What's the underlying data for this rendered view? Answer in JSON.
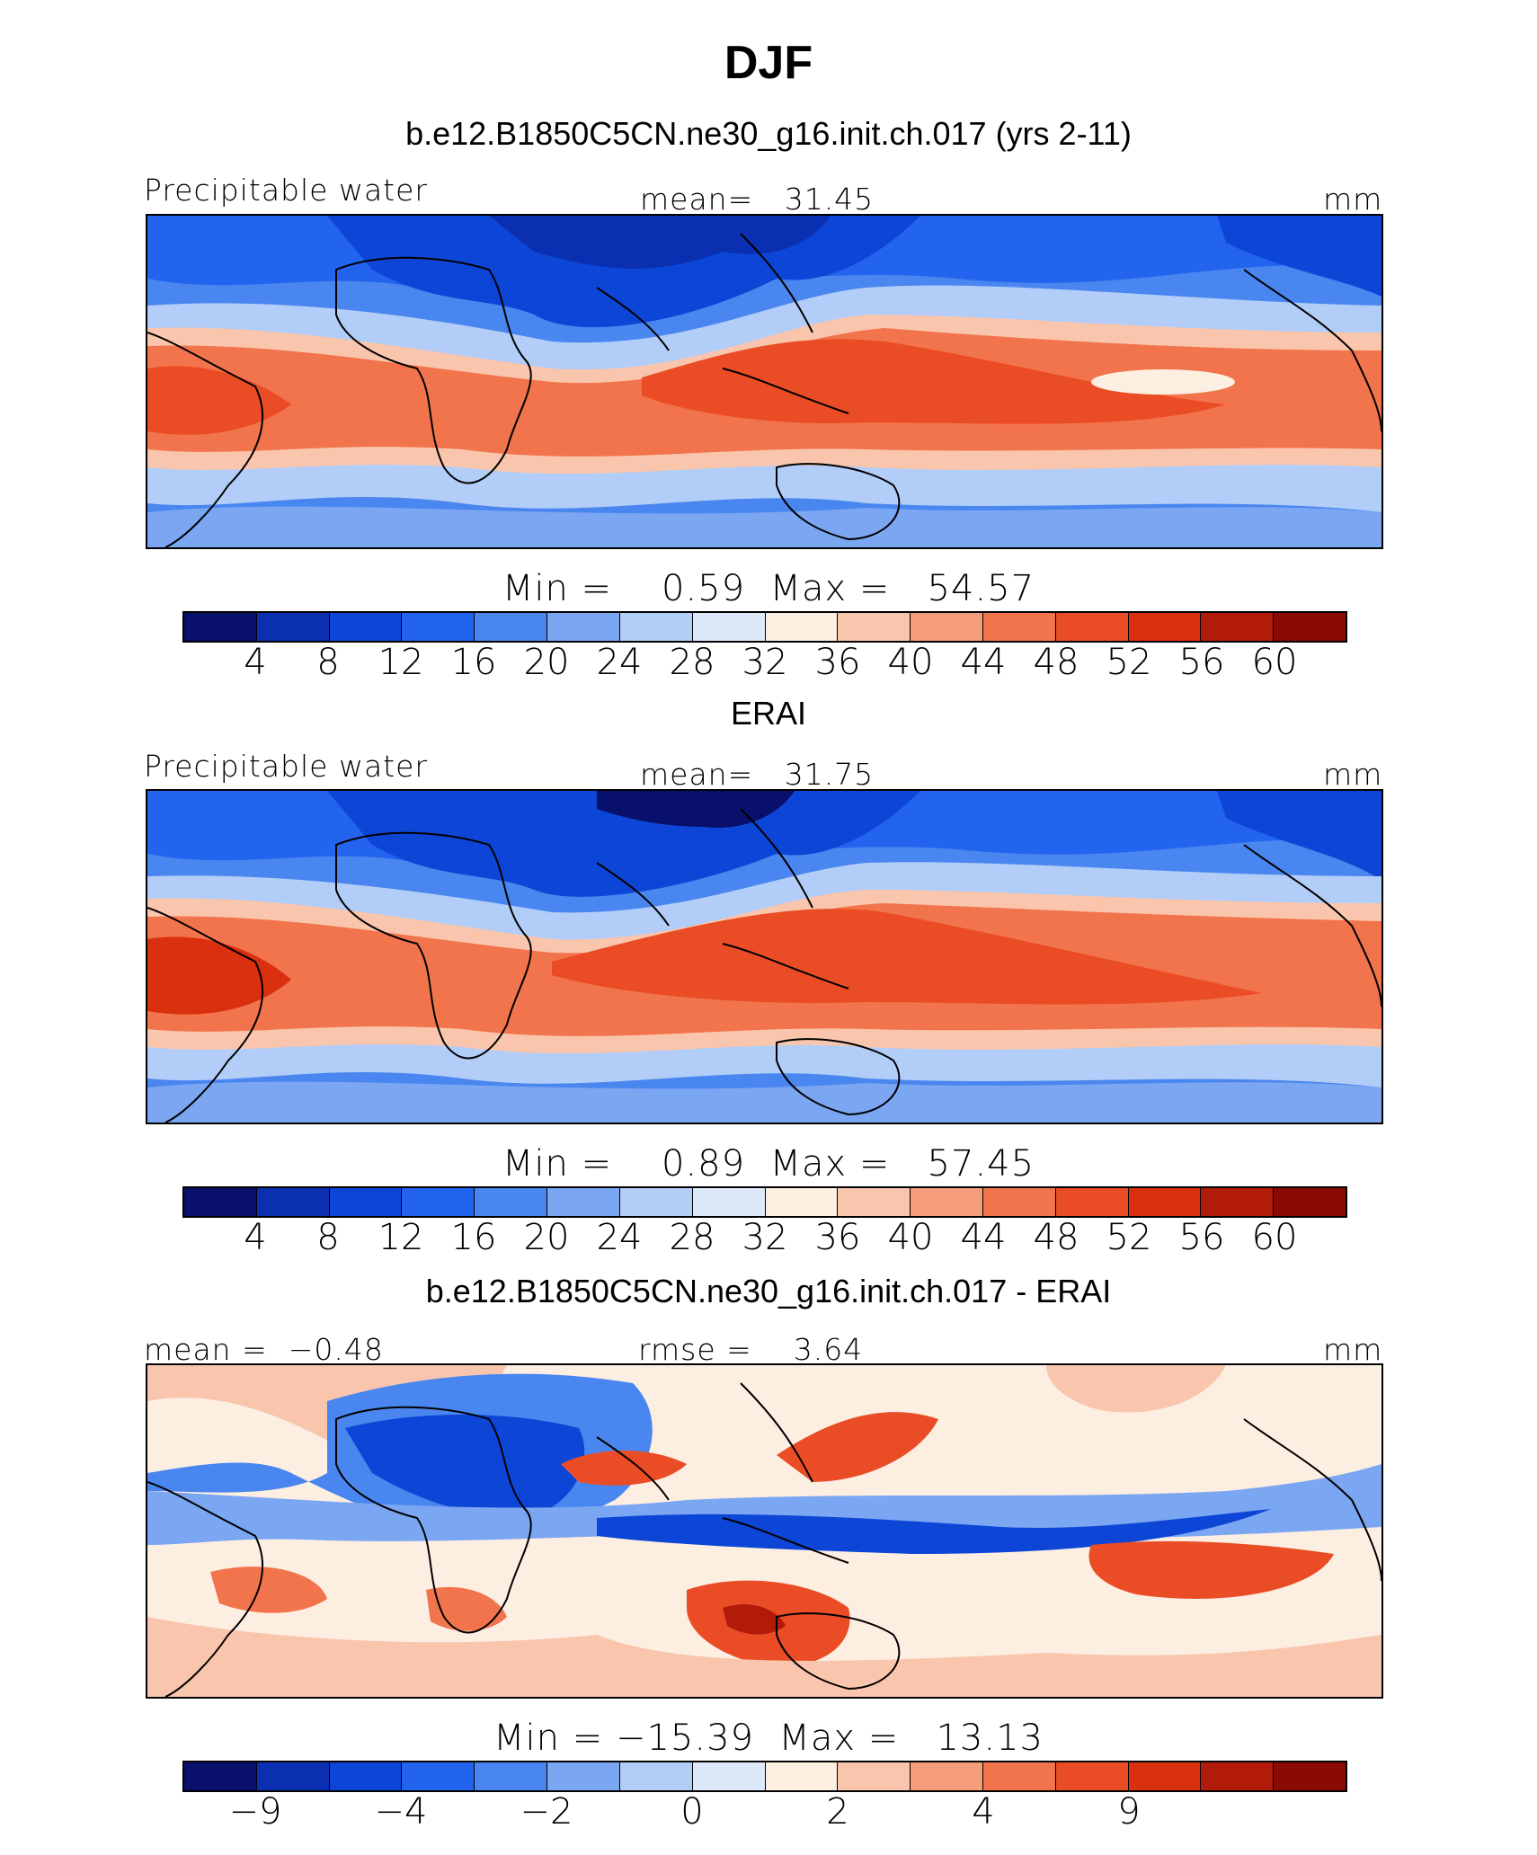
{
  "title": "DJF",
  "palette": [
    "#08106b",
    "#0a2fb0",
    "#0d46d6",
    "#2364ef",
    "#4a86ef",
    "#7ba6f2",
    "#b2cdf7",
    "#dde9fb",
    "#fdeee2",
    "#f9c6ad",
    "#f59c7a",
    "#f2744c",
    "#ea4d26",
    "#d9300f",
    "#b21a0a",
    "#8a0b04"
  ],
  "panels": [
    {
      "subtitle": "b.e12.B1850C5CN.ne30_g16.init.ch.017 (yrs 2-11)",
      "left_label": "Precipitable water",
      "center_label": "mean=   31.45",
      "right_label": "mm",
      "minmax": "Min =    0.59  Max =   54.57",
      "ticks": [
        "4",
        "8",
        "12",
        "16",
        "20",
        "24",
        "28",
        "32",
        "36",
        "40",
        "44",
        "48",
        "52",
        "56",
        "60"
      ]
    },
    {
      "subtitle": "ERAI",
      "left_label": "Precipitable water",
      "center_label": "mean=   31.75",
      "right_label": "mm",
      "minmax": "Min =    0.89  Max =   57.45",
      "ticks": [
        "4",
        "8",
        "12",
        "16",
        "20",
        "24",
        "28",
        "32",
        "36",
        "40",
        "44",
        "48",
        "52",
        "56",
        "60"
      ]
    },
    {
      "subtitle": "b.e12.B1850C5CN.ne30_g16.init.ch.017 - ERAI",
      "left_label": "mean =  −0.48",
      "center_label": "rmse =    3.64",
      "right_label": "mm",
      "minmax": "Min = −15.39  Max =   13.13",
      "ticks": [
        "−9",
        "",
        "−4",
        "",
        "−2",
        "",
        "0",
        "",
        "2",
        "",
        "4",
        "",
        "9",
        "",
        ""
      ]
    }
  ]
}
